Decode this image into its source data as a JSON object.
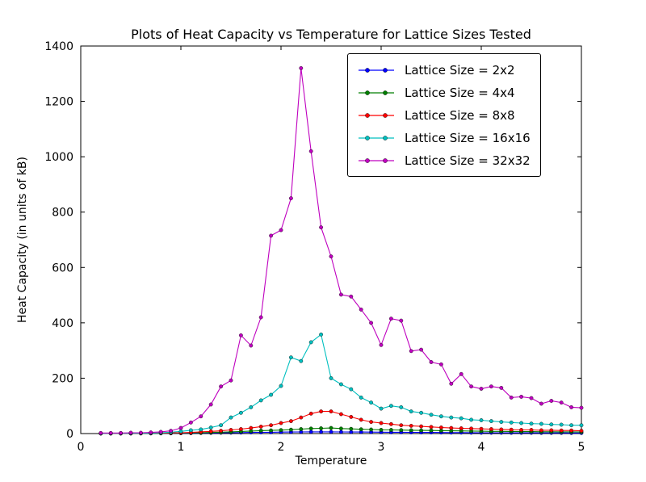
{
  "chart_data": {
    "type": "line",
    "title": "Plots of Heat Capacity vs Temperature for Lattice Sizes Tested",
    "xlabel": "Temperature",
    "ylabel": "Heat Capacity (in units of kB)",
    "xlim": [
      0,
      5
    ],
    "ylim": [
      0,
      1400
    ],
    "xticks": [
      0,
      1,
      2,
      3,
      4,
      5
    ],
    "yticks": [
      0,
      200,
      400,
      600,
      800,
      1000,
      1200,
      1400
    ],
    "grid": false,
    "legend_position": "upper center-right inside axes",
    "marker": "o",
    "x": [
      0.2,
      0.3,
      0.4,
      0.5,
      0.6,
      0.7,
      0.8,
      0.9,
      1.0,
      1.1,
      1.2,
      1.3,
      1.4,
      1.5,
      1.6,
      1.7,
      1.8,
      1.9,
      2.0,
      2.1,
      2.2,
      2.3,
      2.4,
      2.5,
      2.6,
      2.7,
      2.8,
      2.9,
      3.0,
      3.1,
      3.2,
      3.3,
      3.4,
      3.5,
      3.6,
      3.7,
      3.8,
      3.9,
      4.0,
      4.1,
      4.2,
      4.3,
      4.4,
      4.5,
      4.6,
      4.7,
      4.8,
      4.9,
      5.0
    ],
    "series": [
      {
        "name": "Lattice Size = 2x2",
        "color": "#0000ff",
        "values": [
          0.2,
          0.3,
          0.3,
          0.4,
          0.5,
          0.6,
          0.8,
          1.0,
          1.3,
          1.6,
          2.0,
          2.4,
          2.8,
          3.2,
          3.6,
          4.0,
          4.4,
          4.8,
          5.2,
          5.5,
          5.8,
          6.0,
          6.0,
          6.0,
          5.8,
          5.6,
          5.4,
          5.2,
          5.0,
          4.8,
          4.6,
          4.4,
          4.2,
          4.0,
          3.8,
          3.6,
          3.4,
          3.2,
          3.0,
          2.9,
          2.8,
          2.7,
          2.6,
          2.5,
          2.4,
          2.3,
          2.2,
          2.1,
          2.0
        ]
      },
      {
        "name": "Lattice Size = 4x4",
        "color": "#007f00",
        "values": [
          0.3,
          0.4,
          0.4,
          0.5,
          0.6,
          0.8,
          1.0,
          1.5,
          2.0,
          2.5,
          3.0,
          4.0,
          5.0,
          6.0,
          7.5,
          9.0,
          10.5,
          11.5,
          12.5,
          14.0,
          16.0,
          18.0,
          19.0,
          20.0,
          18.0,
          17.0,
          15.5,
          14.5,
          13.5,
          13.0,
          12.5,
          12.0,
          11.5,
          11.0,
          10.5,
          10.0,
          9.5,
          9.0,
          8.5,
          8.0,
          8.0,
          7.5,
          7.0,
          7.0,
          6.5,
          6.5,
          6.0,
          6.0,
          5.5
        ]
      },
      {
        "name": "Lattice Size = 8x8",
        "color": "#ff0000",
        "values": [
          0.5,
          0.6,
          0.8,
          1.0,
          1.2,
          1.5,
          2.0,
          2.5,
          3.0,
          4.0,
          6.0,
          8.0,
          10.0,
          13.0,
          16.0,
          20.0,
          25.0,
          30.0,
          38.0,
          45.0,
          58.0,
          72.0,
          80.0,
          80.0,
          70.0,
          60.0,
          50.0,
          42.0,
          38.0,
          34.0,
          30.0,
          28.0,
          26.0,
          24.0,
          22.0,
          20.0,
          19.0,
          18.0,
          17.0,
          16.0,
          15.0,
          14.0,
          13.0,
          13.0,
          12.0,
          12.0,
          11.0,
          11.0,
          10.0
        ]
      },
      {
        "name": "Lattice Size = 16x16",
        "color": "#00bfbf",
        "values": [
          0.5,
          0.8,
          1.0,
          1.2,
          1.5,
          2.0,
          3.0,
          5.0,
          8.0,
          12.0,
          15.0,
          22.0,
          30.0,
          58.0,
          75.0,
          95.0,
          120.0,
          140.0,
          172.0,
          275.0,
          262.0,
          330.0,
          358.0,
          200.0,
          178.0,
          160.0,
          130.0,
          112.0,
          90.0,
          100.0,
          95.0,
          80.0,
          75.0,
          68.0,
          62.0,
          58.0,
          55.0,
          50.0,
          48.0,
          45.0,
          42.0,
          40.0,
          38.0,
          36.0,
          35.0,
          33.0,
          32.0,
          30.0,
          30.0
        ]
      },
      {
        "name": "Lattice Size = 32x32",
        "color": "#bf00bf",
        "values": [
          2.0,
          2.0,
          2.0,
          3.0,
          3.0,
          4.0,
          6.0,
          10.0,
          20.0,
          40.0,
          62.0,
          105.0,
          170.0,
          192.0,
          355.0,
          318.0,
          420.0,
          715.0,
          735.0,
          850.0,
          1320.0,
          1020.0,
          745.0,
          640.0,
          502.0,
          495.0,
          448.0,
          400.0,
          320.0,
          415.0,
          408.0,
          298.0,
          303.0,
          258.0,
          250.0,
          180.0,
          215.0,
          170.0,
          162.0,
          170.0,
          165.0,
          130.0,
          133.0,
          128.0,
          108.0,
          118.0,
          112.0,
          95.0,
          93.0
        ]
      }
    ]
  }
}
